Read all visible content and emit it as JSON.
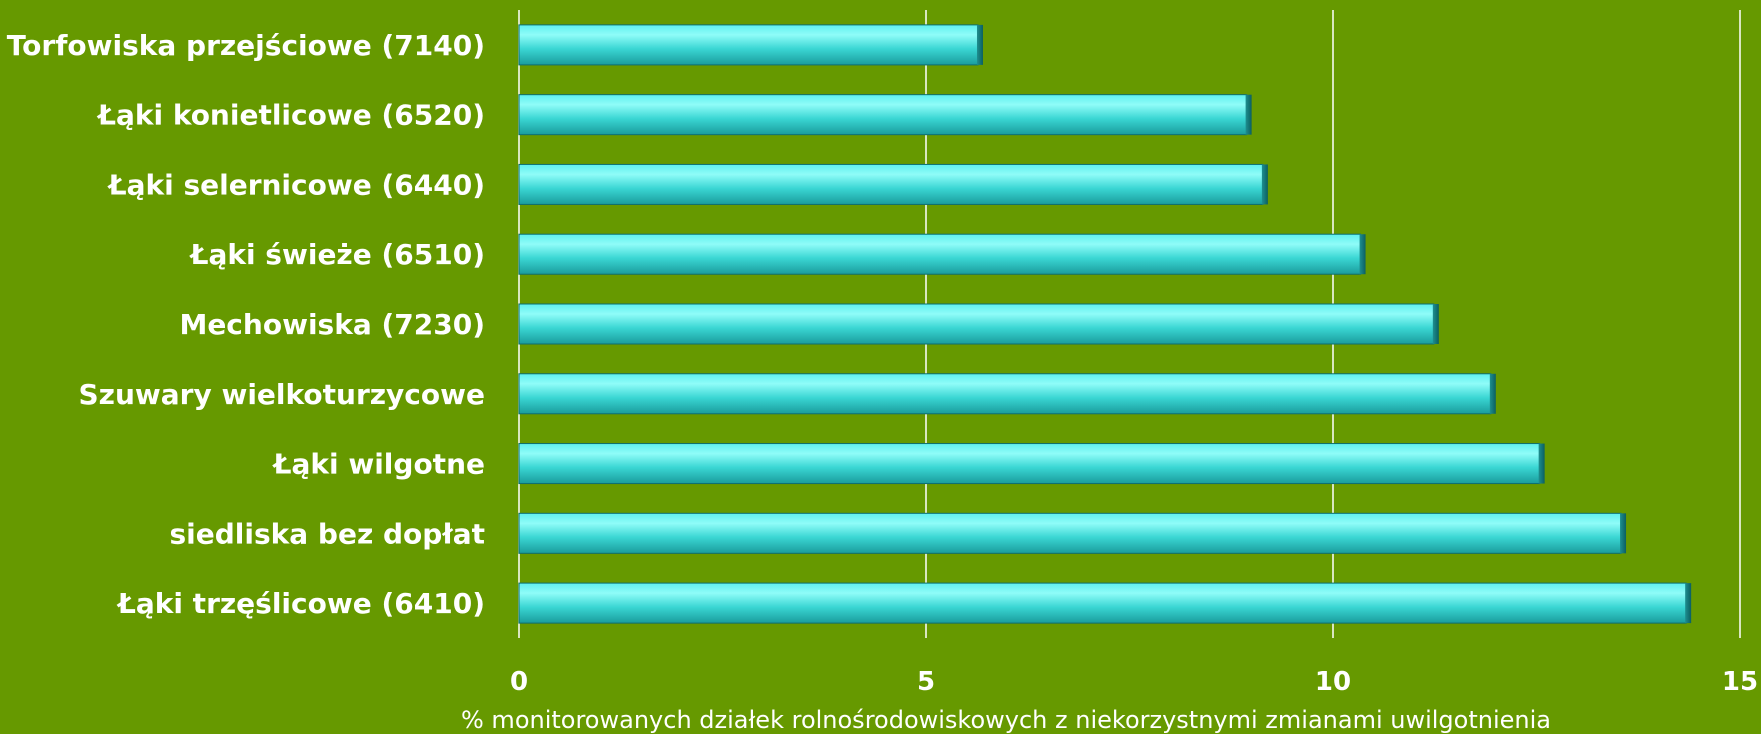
{
  "chart_data": {
    "type": "bar",
    "orientation": "horizontal",
    "categories": [
      "Torfowiska przejściowe (7140)",
      "Łąki konietlicowe (6520)",
      "Łąki selernicowe (6440)",
      "Łąki świeże (6510)",
      "Mechowiska (7230)",
      "Szuwary wielkoturzycowe",
      "Łąki wilgotne",
      "siedliska bez dopłat",
      "Łąki trzęślicowe (6410)"
    ],
    "values": [
      5.7,
      9.0,
      9.2,
      10.4,
      11.3,
      12.0,
      12.6,
      13.6,
      14.4
    ],
    "xlabel": "% monitorowanych działek rolnośrodowiskowych z niekorzystnymi zmianami uwilgotnienia",
    "ylabel": "",
    "title": "",
    "xlim": [
      0,
      15
    ],
    "ticks": [
      "0",
      "5",
      "10",
      "15"
    ],
    "grid": true,
    "colors": {
      "background": "#669900",
      "bar_light": "#7ff7f3",
      "bar_mid": "#3ad6d3",
      "bar_dark": "#0e7d7e",
      "text": "#ffffff"
    }
  }
}
